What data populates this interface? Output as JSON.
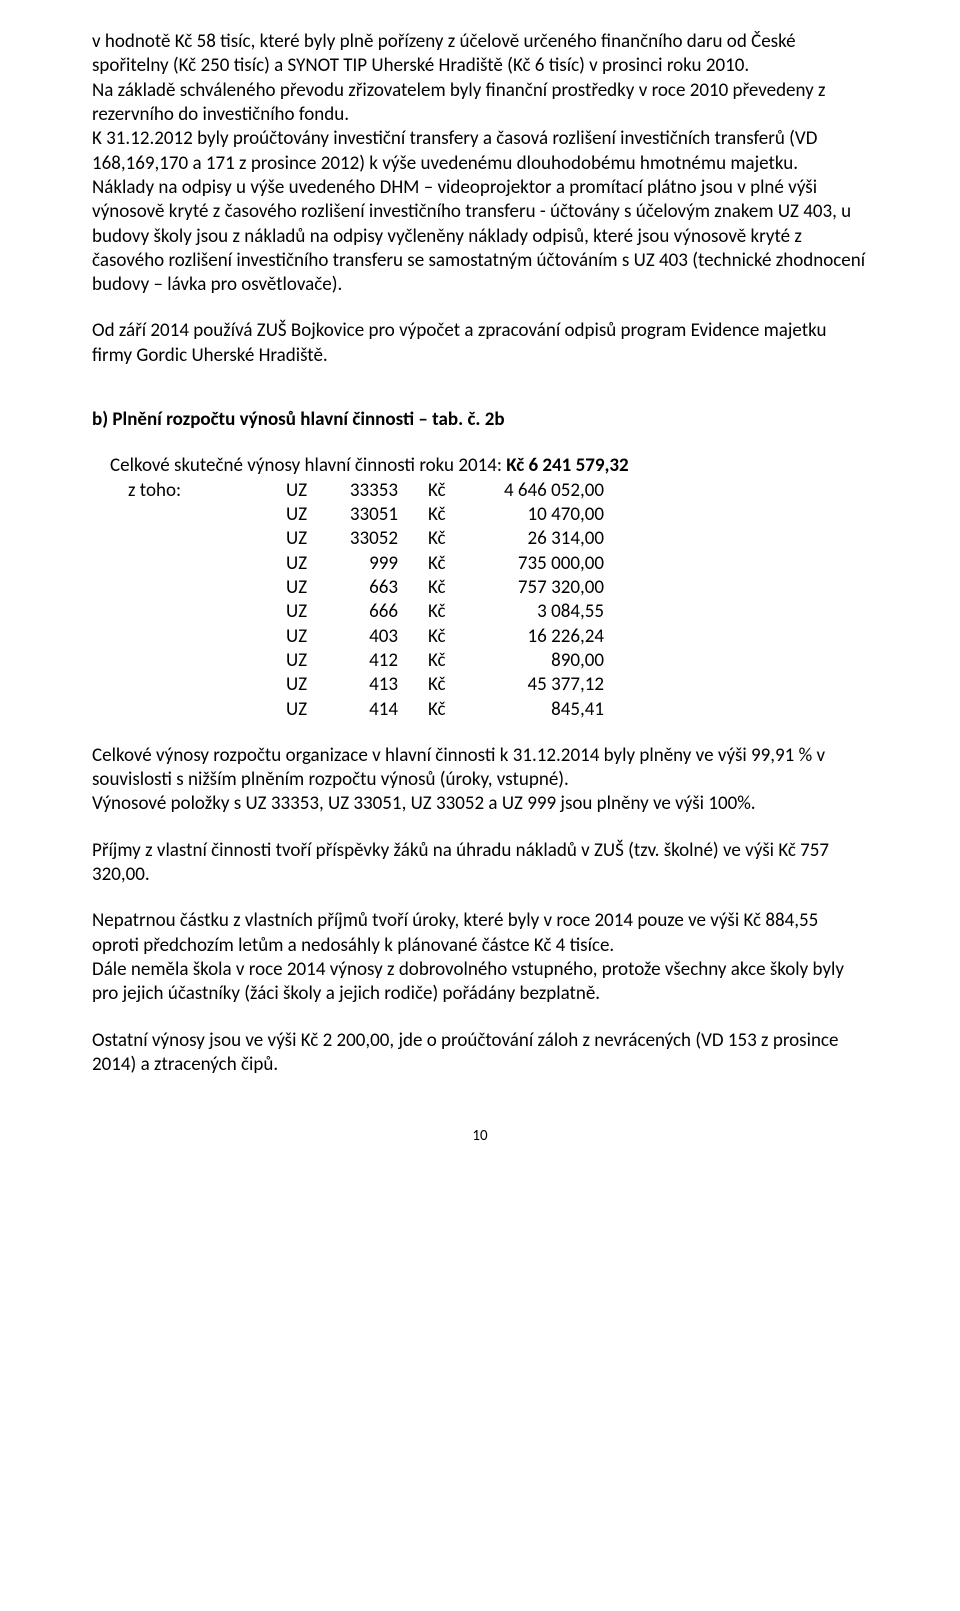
{
  "p1": "v hodnotě Kč 58 tisíc, které byly plně pořízeny z účelově určeného finančního daru od České spořitelny (Kč 250 tisíc) a SYNOT TIP Uherské Hradiště (Kč 6 tisíc) v prosinci roku 2010.",
  "p2": "Na základě schváleného převodu zřizovatelem byly finanční prostředky v roce 2010 převedeny z rezervního do investičního fondu.",
  "p3": "K 31.12.2012 byly proúčtovány investiční transfery a časová rozlišení investičních transferů (VD 168,169,170 a 171 z prosince 2012) k výše uvedenému dlouhodobému hmotnému majetku.",
  "p4": "Náklady na odpisy u výše uvedeného DHM – videoprojektor a promítací plátno jsou v plné výši výnosově kryté z časového rozlišení investičního transferu - účtovány s účelovým znakem UZ 403,  u budovy školy jsou z nákladů na odpisy vyčleněny náklady odpisů, které jsou výnosově kryté z časového rozlišení investičního transferu se samostatným účtováním s UZ 403 (technické zhodnocení budovy – lávka pro osvětlovače).",
  "p5": "Od září 2014 používá ZUŠ Bojkovice pro výpočet a zpracování odpisů program Evidence majetku firmy Gordic Uherské Hradiště.",
  "heading_b": "b)  Plnění rozpočtu výnosů hlavní činnosti – tab. č. 2b",
  "total_line_prefix": "Celkové skutečné výnosy hlavní činnosti roku 2014: ",
  "total_line_bold": "Kč 6 241 579,32",
  "ztoho": "z toho:",
  "uz_label": "UZ",
  "kc_label": "Kč",
  "rows": [
    {
      "code": "33353",
      "amount": "4 646 052,00"
    },
    {
      "code": "33051",
      "amount": "10 470,00"
    },
    {
      "code": "33052",
      "amount": "26 314,00"
    },
    {
      "code": "999",
      "amount": "735 000,00"
    },
    {
      "code": "663",
      "amount": "757 320,00"
    },
    {
      "code": "666",
      "amount": "3 084,55"
    },
    {
      "code": "403",
      "amount": "16 226,24"
    },
    {
      "code": "412",
      "amount": "890,00"
    },
    {
      "code": "413",
      "amount": "45 377,12"
    },
    {
      "code": "414",
      "amount": "845,41"
    }
  ],
  "p6": "Celkové výnosy rozpočtu organizace v hlavní činnosti k 31.12.2014 byly plněny ve výši 99,91 % v souvislosti s nižším plněním rozpočtu výnosů (úroky, vstupné).",
  "p7": "Výnosové položky s UZ 33353, UZ 33051, UZ 33052 a UZ 999 jsou plněny ve výši 100%.",
  "p8": "Příjmy z vlastní činnosti tvoří příspěvky žáků na úhradu nákladů v ZUŠ (tzv. školné) ve výši Kč 757 320,00.",
  "p9": "Nepatrnou částku z vlastních příjmů tvoří úroky, které byly v roce 2014 pouze ve výši Kč 884,55 oproti předchozím letům a nedosáhly k plánované částce Kč 4 tisíce.",
  "p10": "Dále neměla škola v roce 2014 výnosy z dobrovolného vstupného, protože všechny akce školy byly pro jejich účastníky (žáci školy a jejich rodiče) pořádány bezplatně.",
  "p11": "Ostatní výnosy jsou ve výši Kč 2 200,00, jde o proúčtování záloh z nevrácených (VD 153 z prosince 2014) a ztracených čipů.",
  "pagenum": "10"
}
